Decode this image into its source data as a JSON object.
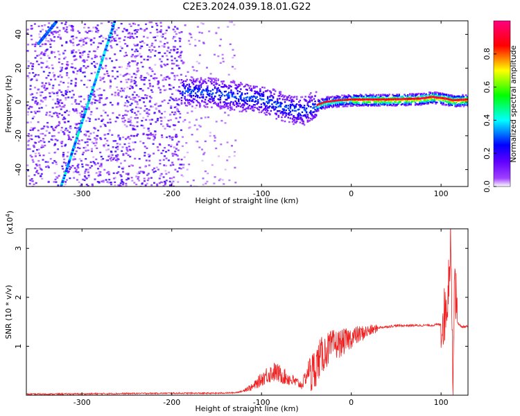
{
  "chart_data": [
    {
      "type": "heatmap",
      "title": "C2E3.2024.039.18.01.G22",
      "xlabel": "Height of straight line (km)",
      "ylabel": "Frequency (Hz)",
      "xlim": [
        -362,
        130
      ],
      "ylim": [
        -50,
        48
      ],
      "x_ticks": [
        -300,
        -200,
        -100,
        0,
        100
      ],
      "y_ticks": [
        -40,
        -20,
        0,
        20,
        40
      ],
      "colorbar": {
        "label": "Normalized spectral amplitude",
        "range": [
          0,
          1
        ],
        "ticks": [
          0.0,
          0.2,
          0.4,
          0.6,
          0.8
        ],
        "colors": [
          "#ffffff",
          "#8a00ff",
          "#0000ff",
          "#00ffff",
          "#00ff00",
          "#ffff00",
          "#ff0000",
          "#ff00aa"
        ]
      },
      "tracks": [
        {
          "from": [
            -325,
            -50
          ],
          "to": [
            -265,
            48
          ],
          "amplitude": 0.35
        },
        {
          "from": [
            -350,
            35
          ],
          "to": [
            -330,
            48
          ],
          "amplitude": 0.3
        }
      ],
      "main_line": [
        [
          -190,
          7
        ],
        [
          -160,
          6
        ],
        [
          -130,
          4
        ],
        [
          -100,
          2
        ],
        [
          -80,
          -2
        ],
        [
          -65,
          -4
        ],
        [
          -55,
          -5
        ],
        [
          -45,
          -3
        ],
        [
          -30,
          0
        ],
        [
          -15,
          1
        ],
        [
          0,
          1.5
        ],
        [
          40,
          1.5
        ],
        [
          75,
          2
        ],
        [
          90,
          3
        ],
        [
          105,
          2
        ],
        [
          112,
          1
        ],
        [
          130,
          1.5
        ]
      ],
      "noise_region_x": [
        -362,
        -190
      ]
    },
    {
      "type": "line",
      "xlabel": "Height of straight line (km)",
      "ylabel": "SNR (10 * v/v)",
      "y_multiplier": "(x10",
      "y_multiplier_exp": "4",
      "y_multiplier_close": ")",
      "xlim": [
        -362,
        130
      ],
      "ylim": [
        0,
        3.4
      ],
      "x_ticks": [
        -300,
        -200,
        -100,
        0,
        100
      ],
      "y_ticks": [
        1,
        2,
        3
      ],
      "color": "#ee2222",
      "envelope": [
        [
          -362,
          0.02
        ],
        [
          -200,
          0.04
        ],
        [
          -150,
          0.04
        ],
        [
          -130,
          0.05
        ],
        [
          -110,
          0.12
        ],
        [
          -95,
          0.3
        ],
        [
          -85,
          0.35
        ],
        [
          -70,
          0.25
        ],
        [
          -55,
          0.15
        ],
        [
          -45,
          0.45
        ],
        [
          -35,
          0.8
        ],
        [
          -28,
          0.95
        ],
        [
          -20,
          1.05
        ],
        [
          -10,
          1.1
        ],
        [
          0,
          1.2
        ],
        [
          15,
          1.3
        ],
        [
          30,
          1.38
        ],
        [
          50,
          1.42
        ],
        [
          90,
          1.43
        ],
        [
          100,
          1.45
        ],
        [
          105,
          1.7
        ],
        [
          108,
          2.2
        ],
        [
          111,
          3.4
        ],
        [
          113,
          0.1
        ],
        [
          115,
          2.6
        ],
        [
          118,
          1.5
        ],
        [
          122,
          1.4
        ],
        [
          130,
          1.4
        ]
      ]
    }
  ]
}
